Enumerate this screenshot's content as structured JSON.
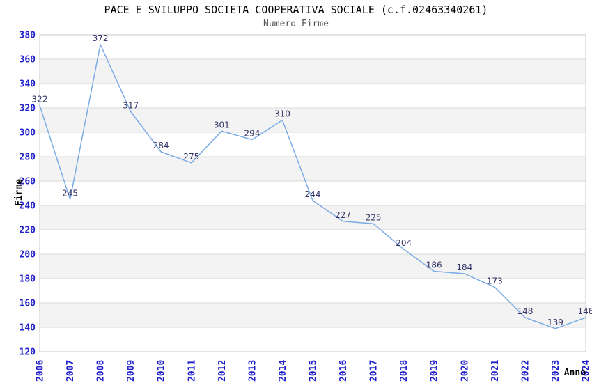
{
  "header": {
    "title": "PACE E SVILUPPO SOCIETA COOPERATIVA SOCIALE (c.f.02463340261)",
    "subtitle": "Numero Firme"
  },
  "axes": {
    "ylabel": "Firme",
    "xlabel": "Anno"
  },
  "chart_data": {
    "type": "line",
    "title": "PACE E SVILUPPO SOCIETA COOPERATIVA SOCIALE (c.f.02463340261)",
    "subtitle": "Numero Firme",
    "xlabel": "Anno",
    "ylabel": "Firme",
    "categories": [
      "2006",
      "2007",
      "2008",
      "2009",
      "2010",
      "2011",
      "2012",
      "2013",
      "2014",
      "2015",
      "2016",
      "2017",
      "2018",
      "2019",
      "2020",
      "2021",
      "2022",
      "2023",
      "2024"
    ],
    "series": [
      {
        "name": "Numero Firme",
        "values": [
          322,
          245,
          372,
          317,
          284,
          275,
          301,
          294,
          310,
          244,
          227,
          225,
          204,
          186,
          184,
          173,
          148,
          139,
          148
        ]
      }
    ],
    "ylim": [
      120,
      380
    ],
    "ytick_step": 20,
    "yticks": [
      120,
      140,
      160,
      180,
      200,
      220,
      240,
      260,
      280,
      300,
      320,
      340,
      360,
      380
    ],
    "show_value_labels": true,
    "grid": "horizontal-bands",
    "legend_position": "none",
    "colors": {
      "line": "#7aabe4",
      "tick_labels": "#2222cc",
      "value_labels": "#333366",
      "band": "#f3f3f3",
      "gridline": "#d8d8d8",
      "plot_border": "#c9c9c9",
      "title": "#000000",
      "subtitle": "#555555",
      "axis_titles": "#000000",
      "background": "#ffffff"
    }
  }
}
